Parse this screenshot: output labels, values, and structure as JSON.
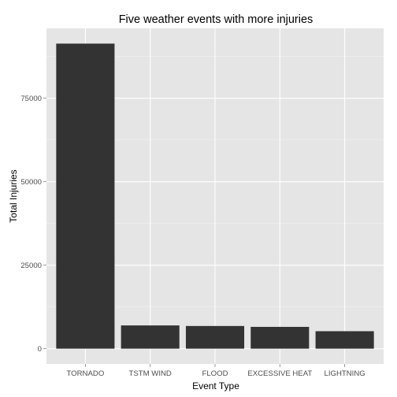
{
  "chart_data": {
    "type": "bar",
    "title": "Five weather events with more injuries",
    "xlabel": "Event Type",
    "ylabel": "Total Injuries",
    "categories": [
      "TORNADO",
      "TSTM WIND",
      "FLOOD",
      "EXCESSIVE HEAT",
      "LIGHTNING"
    ],
    "values": [
      91346,
      6957,
      6789,
      6525,
      5230
    ],
    "ylim": [
      -4567,
      95913
    ],
    "yticks": [
      0,
      25000,
      50000,
      75000
    ],
    "ytick_labels": [
      "0",
      "25000",
      "50000",
      "75000"
    ],
    "grid": true,
    "legend": "none",
    "colors": {
      "bar": "#333333",
      "panel": "#e5e5e5",
      "grid_major": "#ffffff",
      "grid_minor": "#f2f2f2"
    }
  }
}
